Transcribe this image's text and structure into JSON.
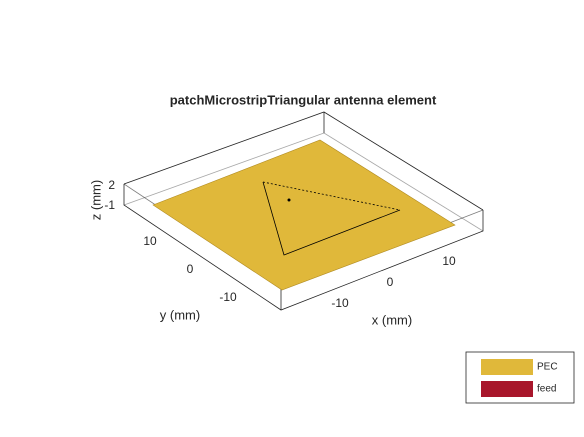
{
  "title": "patchMicrostripTriangular antenna element",
  "axes": {
    "x_label": "x (mm)",
    "y_label": "y (mm)",
    "z_label": "z (mm)",
    "x_ticks": [
      "-10",
      "0",
      "10"
    ],
    "y_ticks": [
      "10",
      "0",
      "-10"
    ],
    "z_ticks": [
      "2",
      "-1"
    ]
  },
  "legend": [
    {
      "name": "PEC",
      "color": "#e0b83a"
    },
    {
      "name": "feed",
      "color": "#a8162b"
    }
  ]
}
